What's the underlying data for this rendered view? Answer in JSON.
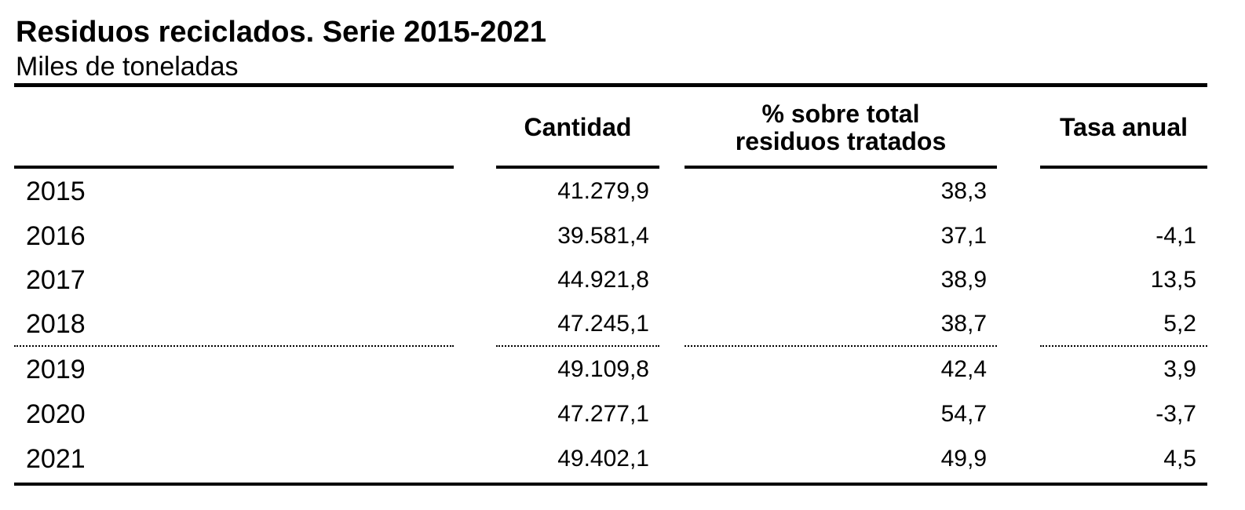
{
  "header": {
    "title": "Residuos reciclados. Serie 2015-2021",
    "subtitle": "Miles de toneladas"
  },
  "table": {
    "columns": [
      "Cantidad",
      "% sobre total residuos tratados",
      "Tasa anual"
    ],
    "rows": [
      {
        "year": "2015",
        "cantidad": "41.279,9",
        "porcentaje": "38,3"
      },
      {
        "year": "2016",
        "cantidad": "39.581,4",
        "porcentaje": "37,1",
        "tasa": "-4,1"
      },
      {
        "year": "2017",
        "cantidad": "44.921,8",
        "porcentaje": "38,9",
        "tasa": "13,5"
      },
      {
        "year": "2018",
        "cantidad": "47.245,1",
        "porcentaje": "38,7",
        "tasa": "5,2"
      },
      {
        "year": "2019",
        "cantidad": "49.109,8",
        "porcentaje": "42,4",
        "tasa": "3,9"
      },
      {
        "year": "2020",
        "cantidad": "47.277,1",
        "porcentaje": "54,7",
        "tasa": "-3,7"
      },
      {
        "year": "2021",
        "cantidad": "49.402,1",
        "porcentaje": "49,9",
        "tasa": "4,5"
      }
    ]
  }
}
